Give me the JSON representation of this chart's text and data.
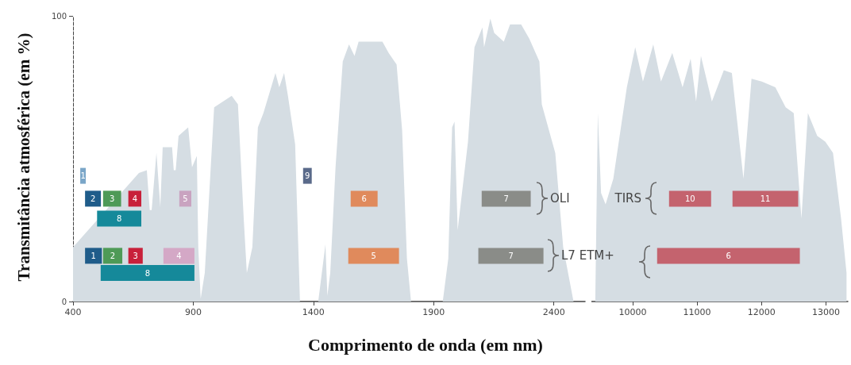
{
  "chart_data": [
    {
      "type": "area",
      "xlabel": "Comprimento de onda (em nm)",
      "ylabel": "Transmitância atmosférica (em %)",
      "xlim": [
        400,
        2530
      ],
      "xticks": [
        400,
        900,
        1400,
        1900,
        2400
      ],
      "ylim": [
        0,
        100
      ],
      "yticks": [
        0,
        100
      ],
      "series": [
        {
          "color": "#d5dde3",
          "x": [
            400,
            674,
            707,
            719,
            727,
            747,
            763,
            773,
            812,
            819,
            827,
            839,
            879,
            895,
            915,
            921,
            931,
            948,
            987,
            1060,
            1086,
            1110,
            1123,
            1146,
            1169,
            1192,
            1242,
            1258,
            1278,
            1294,
            1324,
            1344,
            1420,
            1450,
            1458,
            1470,
            1492,
            1522,
            1548,
            1571,
            1588,
            1621,
            1687,
            1713,
            1746,
            1769,
            1789,
            1806,
            1938,
            1961,
            1977,
            1987,
            2000,
            2043,
            2070,
            2103,
            2110,
            2136,
            2152,
            2192,
            2218,
            2264,
            2298,
            2340,
            2350,
            2406,
            2439,
            2482
          ],
          "values": [
            19,
            45,
            46,
            32,
            32,
            52,
            33,
            54,
            54,
            46,
            46,
            58,
            61,
            47,
            51,
            19,
            1,
            10,
            68,
            72,
            69,
            29,
            10,
            19,
            61,
            66,
            80,
            75,
            80,
            72,
            55,
            0,
            0,
            20,
            2,
            10,
            47,
            84,
            90,
            86,
            91,
            91,
            91,
            87,
            83,
            60,
            15,
            0,
            0,
            15,
            61,
            63,
            25,
            56,
            89,
            96,
            89,
            99,
            94,
            91,
            97,
            97,
            92,
            84,
            69,
            52,
            19,
            0
          ]
        },
        {
          "type": "line",
          "name": "1",
          "color": "#7aa6c8",
          "x": [
            430,
            453
          ],
          "values": [
            44,
            44
          ]
        },
        {
          "type": "line",
          "name": "2",
          "color": "#1f5c8a",
          "x": [
            450,
            516
          ],
          "values": [
            36,
            36
          ]
        },
        {
          "type": "line",
          "name": "3",
          "color": "#4e9a57",
          "x": [
            525,
            600
          ],
          "values": [
            36,
            36
          ]
        },
        {
          "type": "line",
          "name": "4",
          "color": "#c8203a",
          "x": [
            630,
            684
          ],
          "values": [
            36,
            36
          ]
        },
        {
          "type": "line",
          "name": "8",
          "color": "#15899a",
          "x": [
            500,
            684
          ],
          "values": [
            29,
            29
          ]
        },
        {
          "type": "line",
          "name": "5",
          "color": "#c9a3c0",
          "x": [
            842,
            892
          ],
          "values": [
            36,
            36
          ]
        },
        {
          "type": "line",
          "name": "9",
          "color": "#5a6a8a",
          "x": [
            1357,
            1393
          ],
          "values": [
            44,
            44
          ]
        },
        {
          "type": "line",
          "name": "6",
          "color": "#e08a5c",
          "x": [
            1555,
            1667
          ],
          "values": [
            36,
            36
          ]
        },
        {
          "type": "line",
          "name": "7",
          "color": "#8a8c88",
          "x": [
            2100,
            2304
          ],
          "values": [
            36,
            36
          ]
        },
        {
          "type": "line",
          "name": "1",
          "color": "#1f5c8a",
          "x": [
            450,
            520
          ],
          "values": [
            16,
            16
          ]
        },
        {
          "type": "line",
          "name": "2",
          "color": "#4e9a57",
          "x": [
            525,
            605
          ],
          "values": [
            16,
            16
          ]
        },
        {
          "type": "line",
          "name": "3",
          "color": "#c8203a",
          "x": [
            630,
            690
          ],
          "values": [
            16,
            16
          ]
        },
        {
          "type": "line",
          "name": "4",
          "color": "#d4a8c6",
          "x": [
            776,
            905
          ],
          "values": [
            16,
            16
          ]
        },
        {
          "type": "line",
          "name": "8",
          "color": "#15899a",
          "x": [
            515,
            905
          ],
          "values": [
            10,
            10
          ]
        },
        {
          "type": "line",
          "name": "5",
          "color": "#e08a5c",
          "x": [
            1545,
            1756
          ],
          "values": [
            16,
            16
          ]
        },
        {
          "type": "line",
          "name": "7",
          "color": "#8a8c88",
          "x": [
            2086,
            2357
          ],
          "values": [
            16,
            16
          ]
        }
      ],
      "annotations": [
        "OLI",
        "L7 ETM+"
      ]
    },
    {
      "type": "area",
      "xlim": [
        9360,
        13340
      ],
      "xticks": [
        10000,
        11000,
        12000,
        13000
      ],
      "ylim": [
        0,
        100
      ],
      "tick_labels": "x",
      "series": [
        {
          "color": "#d5dde3",
          "x": [
            9420,
            9460,
            9510,
            9580,
            9700,
            9910,
            10040,
            10160,
            10320,
            10440,
            10615,
            10775,
            10900,
            10985,
            11060,
            11230,
            11415,
            11540,
            11720,
            11845,
            12005,
            12215,
            12375,
            12500,
            12620,
            12720,
            12865,
            12990,
            13110,
            13235,
            13320
          ],
          "values": [
            0,
            66,
            38,
            34,
            43,
            75,
            89,
            77,
            90,
            77,
            87,
            75,
            85,
            70,
            86,
            70,
            81,
            80,
            43,
            78,
            77,
            75,
            68,
            66,
            29,
            66,
            58,
            56,
            52,
            29,
            10
          ]
        },
        {
          "type": "line",
          "name": "10",
          "color": "#c4636e",
          "x": [
            10565,
            11218
          ],
          "values": [
            36,
            36
          ]
        },
        {
          "type": "line",
          "name": "11",
          "color": "#c4636e",
          "x": [
            11550,
            12570
          ],
          "values": [
            36,
            36
          ]
        },
        {
          "type": "line",
          "name": "6",
          "color": "#c4636e",
          "x": [
            10380,
            12595
          ],
          "values": [
            16,
            16
          ]
        }
      ],
      "annotations": [
        "TIRS"
      ]
    }
  ]
}
